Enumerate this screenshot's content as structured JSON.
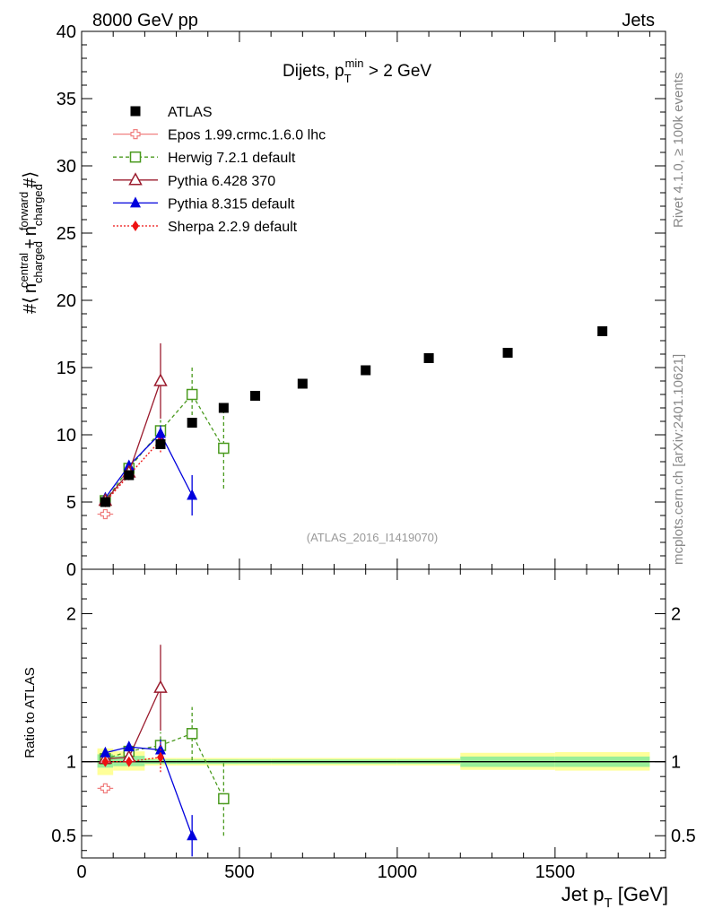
{
  "header": {
    "left": "8000 GeV pp",
    "right": "Jets"
  },
  "side_labels": {
    "rivet": "Rivet 4.1.0, ≥ 100k events",
    "mcplots": "mcplots.cern.ch [arXiv:2401.10621]"
  },
  "chart_data": [
    {
      "type": "scatter",
      "panel": "main",
      "title": "Dijets, p_T^min > 2 GeV",
      "title_parts": {
        "prefix": "Dijets, p",
        "sub": "T",
        "sup": "min",
        "suffix": " > 2 GeV"
      },
      "ylabel": "#⟨ n_charged^central + n_charged^forward #⟩",
      "ylabel_parts": {
        "hash": "#⟨",
        "n": "n",
        "sub": "charged",
        "sup1": "central",
        "sup2": "forward",
        "plus": "+",
        "close": "#⟩"
      },
      "watermark": "(ATLAS_2016_I1419070)",
      "xlim": [
        0,
        1850
      ],
      "ylim": [
        0,
        40
      ],
      "yticks": [
        0,
        5,
        10,
        15,
        20,
        25,
        30,
        35,
        40
      ],
      "ytick_labels": [
        "0",
        "5",
        "10",
        "15",
        "20",
        "25",
        "30",
        "35",
        "40"
      ],
      "series": [
        {
          "name": "ATLAS",
          "color": "#000000",
          "marker": "square-filled",
          "x": [
            75,
            150,
            250,
            350,
            450,
            550,
            700,
            900,
            1100,
            1350,
            1650
          ],
          "y": [
            5.0,
            7.0,
            9.3,
            10.9,
            12.0,
            12.9,
            13.8,
            14.8,
            15.7,
            16.1,
            17.7
          ]
        },
        {
          "name": "Epos 1.99.crmc.1.6.0 lhc",
          "color": "#f08080",
          "marker": "cross-open",
          "line": "solid",
          "x": [
            75
          ],
          "y": [
            4.1
          ],
          "err": [
            0.2
          ]
        },
        {
          "name": "Herwig 7.2.1 default",
          "color": "#4a9a1e",
          "marker": "square-open",
          "line": "dashed",
          "x": [
            75,
            150,
            250,
            350,
            450
          ],
          "y": [
            5.1,
            7.5,
            10.3,
            13.0,
            9.0
          ],
          "err": [
            0.1,
            0.2,
            0.8,
            2.0,
            3.0
          ]
        },
        {
          "name": "Pythia 6.428 370",
          "color": "#9b1c2e",
          "marker": "triangle-open",
          "line": "solid",
          "x": [
            75,
            150,
            250
          ],
          "y": [
            5.1,
            7.2,
            14.0
          ],
          "err": [
            0.1,
            0.3,
            2.8
          ]
        },
        {
          "name": "Pythia 8.315 default",
          "color": "#0000dd",
          "marker": "triangle-filled",
          "line": "solid",
          "x": [
            75,
            150,
            250,
            350
          ],
          "y": [
            5.3,
            7.7,
            10.1,
            5.5
          ],
          "err": [
            0.1,
            0.2,
            0.6,
            1.5
          ]
        },
        {
          "name": "Sherpa 2.2.9 default",
          "color": "#ee1111",
          "marker": "diamond-filled",
          "line": "dotted",
          "x": [
            75,
            150,
            250
          ],
          "y": [
            5.0,
            7.0,
            9.6
          ],
          "err": [
            0.1,
            0.2,
            0.9
          ]
        }
      ]
    },
    {
      "type": "scatter",
      "panel": "ratio",
      "ylabel": "Ratio to ATLAS",
      "xlabel": "Jet p_T [GeV]",
      "xlabel_parts": {
        "prefix": "Jet p",
        "sub": "T",
        "suffix": " [GeV]"
      },
      "xlim": [
        0,
        1850
      ],
      "ylim": [
        0.35,
        2.3
      ],
      "xticks": [
        0,
        500,
        1000,
        1500
      ],
      "xtick_labels": [
        "0",
        "500",
        "1000",
        "1500"
      ],
      "yticks": [
        0.5,
        1,
        2
      ],
      "ytick_labels": [
        "0.5",
        "1",
        "2"
      ],
      "bands": [
        {
          "x0": 50,
          "x1": 100,
          "y_lo": 0.91,
          "y_hi": 1.09,
          "g_lo": 0.96,
          "g_hi": 1.05
        },
        {
          "x0": 100,
          "x1": 200,
          "y_lo": 0.94,
          "y_hi": 1.07,
          "g_lo": 0.97,
          "g_hi": 1.04
        },
        {
          "x0": 200,
          "x1": 300,
          "y_lo": 0.975,
          "y_hi": 1.025,
          "g_lo": 0.985,
          "g_hi": 1.015
        },
        {
          "x0": 300,
          "x1": 400,
          "y_lo": 0.975,
          "y_hi": 1.025,
          "g_lo": 0.985,
          "g_hi": 1.015
        },
        {
          "x0": 400,
          "x1": 500,
          "y_lo": 0.975,
          "y_hi": 1.025,
          "g_lo": 0.985,
          "g_hi": 1.015
        },
        {
          "x0": 500,
          "x1": 600,
          "y_lo": 0.975,
          "y_hi": 1.025,
          "g_lo": 0.985,
          "g_hi": 1.015
        },
        {
          "x0": 600,
          "x1": 800,
          "y_lo": 0.975,
          "y_hi": 1.025,
          "g_lo": 0.985,
          "g_hi": 1.015
        },
        {
          "x0": 800,
          "x1": 1000,
          "y_lo": 0.975,
          "y_hi": 1.025,
          "g_lo": 0.985,
          "g_hi": 1.015
        },
        {
          "x0": 1000,
          "x1": 1200,
          "y_lo": 0.975,
          "y_hi": 1.025,
          "g_lo": 0.985,
          "g_hi": 1.015
        },
        {
          "x0": 1200,
          "x1": 1500,
          "y_lo": 0.945,
          "y_hi": 1.06,
          "g_lo": 0.965,
          "g_hi": 1.035
        },
        {
          "x0": 1500,
          "x1": 1800,
          "y_lo": 0.94,
          "y_hi": 1.065,
          "g_lo": 0.965,
          "g_hi": 1.035
        }
      ],
      "series": [
        {
          "name": "Epos 1.99.crmc.1.6.0 lhc",
          "x": [
            75
          ],
          "y": [
            0.82
          ],
          "err": [
            0.02
          ]
        },
        {
          "name": "Herwig 7.2.1 default",
          "x": [
            75,
            150,
            250,
            350,
            450
          ],
          "y": [
            1.02,
            1.07,
            1.11,
            1.19,
            0.75
          ],
          "err": [
            0.02,
            0.03,
            0.09,
            0.18,
            0.25
          ]
        },
        {
          "name": "Pythia 6.428 370",
          "x": [
            75,
            150,
            250
          ],
          "y": [
            1.02,
            1.03,
            1.5
          ],
          "err": [
            0.02,
            0.04,
            0.29
          ]
        },
        {
          "name": "Pythia 8.315 default",
          "x": [
            75,
            150,
            250,
            350
          ],
          "y": [
            1.06,
            1.1,
            1.08,
            0.5
          ],
          "err": [
            0.02,
            0.03,
            0.07,
            0.14
          ]
        },
        {
          "name": "Sherpa 2.2.9 default",
          "x": [
            75,
            150,
            250
          ],
          "y": [
            1.0,
            1.0,
            1.03
          ],
          "err": [
            0.02,
            0.03,
            0.1
          ]
        }
      ]
    }
  ]
}
